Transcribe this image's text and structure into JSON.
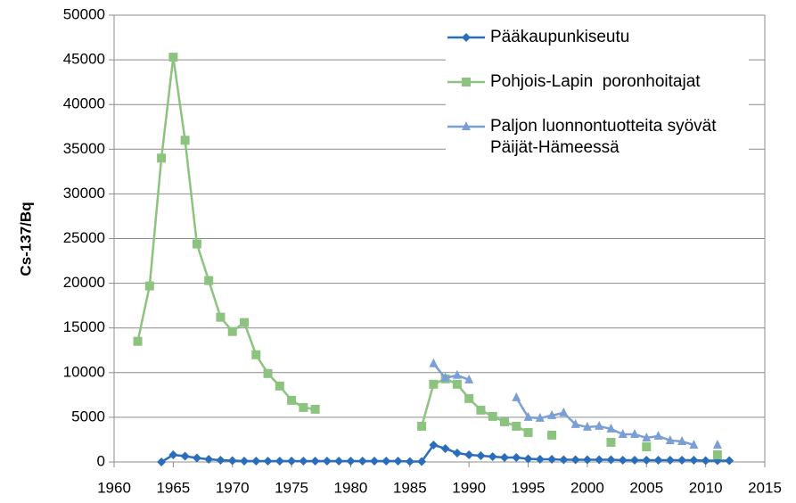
{
  "chart_data": {
    "type": "line",
    "ylabel": "Cs-137/Bq",
    "xlim": [
      1960,
      2015
    ],
    "xticks": [
      1960,
      1965,
      1970,
      1975,
      1980,
      1985,
      1990,
      1995,
      2000,
      2005,
      2010,
      2015
    ],
    "ylim": [
      0,
      50000
    ],
    "yticks": [
      0,
      5000,
      10000,
      15000,
      20000,
      25000,
      30000,
      35000,
      40000,
      45000,
      50000
    ],
    "grid": true,
    "x": [
      1962,
      1963,
      1964,
      1965,
      1966,
      1967,
      1968,
      1969,
      1970,
      1971,
      1972,
      1973,
      1974,
      1975,
      1976,
      1977,
      1978,
      1979,
      1980,
      1981,
      1982,
      1983,
      1984,
      1985,
      1986,
      1987,
      1988,
      1989,
      1990,
      1991,
      1992,
      1993,
      1994,
      1995,
      1996,
      1997,
      1998,
      1999,
      2000,
      2001,
      2002,
      2003,
      2004,
      2005,
      2006,
      2007,
      2008,
      2009,
      2010,
      2011,
      2012
    ],
    "series": [
      {
        "name": "Pääkaupunkiseutu",
        "color": "#2a6ebb",
        "marker": "diamond",
        "values": [
          null,
          null,
          0,
          800,
          650,
          450,
          300,
          200,
          150,
          100,
          100,
          100,
          100,
          100,
          100,
          100,
          100,
          100,
          100,
          100,
          100,
          100,
          100,
          50,
          50,
          1900,
          1500,
          1000,
          800,
          700,
          600,
          500,
          500,
          350,
          300,
          300,
          250,
          250,
          250,
          250,
          250,
          200,
          200,
          200,
          200,
          200,
          200,
          200,
          150,
          150,
          150
        ]
      },
      {
        "name": "Pohjois-Lapin  poronhoitajat",
        "color": "#8cc37f",
        "marker": "square",
        "values": [
          13500,
          19700,
          34000,
          45300,
          36000,
          24400,
          20300,
          16200,
          14600,
          15600,
          12000,
          9900,
          8500,
          6900,
          6100,
          5900,
          null,
          null,
          null,
          null,
          null,
          null,
          null,
          null,
          4000,
          8700,
          9300,
          8700,
          7100,
          5800,
          5100,
          4500,
          4000,
          3300,
          null,
          3000,
          null,
          null,
          null,
          null,
          2200,
          null,
          null,
          1700,
          null,
          null,
          null,
          null,
          null,
          800,
          null
        ]
      },
      {
        "name": "Paljon luonnontuotteita syövät Päijät-Hämeessä",
        "color": "#7a9fd6",
        "marker": "triangle",
        "values": [
          null,
          null,
          null,
          null,
          null,
          null,
          null,
          null,
          null,
          null,
          null,
          null,
          null,
          null,
          null,
          null,
          null,
          null,
          null,
          null,
          null,
          null,
          null,
          null,
          null,
          11000,
          9400,
          9700,
          9200,
          null,
          null,
          null,
          7200,
          5000,
          4900,
          5200,
          5500,
          4200,
          3900,
          4000,
          3700,
          3100,
          3100,
          2700,
          2900,
          2400,
          2300,
          1900,
          null,
          1900,
          null
        ]
      }
    ]
  }
}
